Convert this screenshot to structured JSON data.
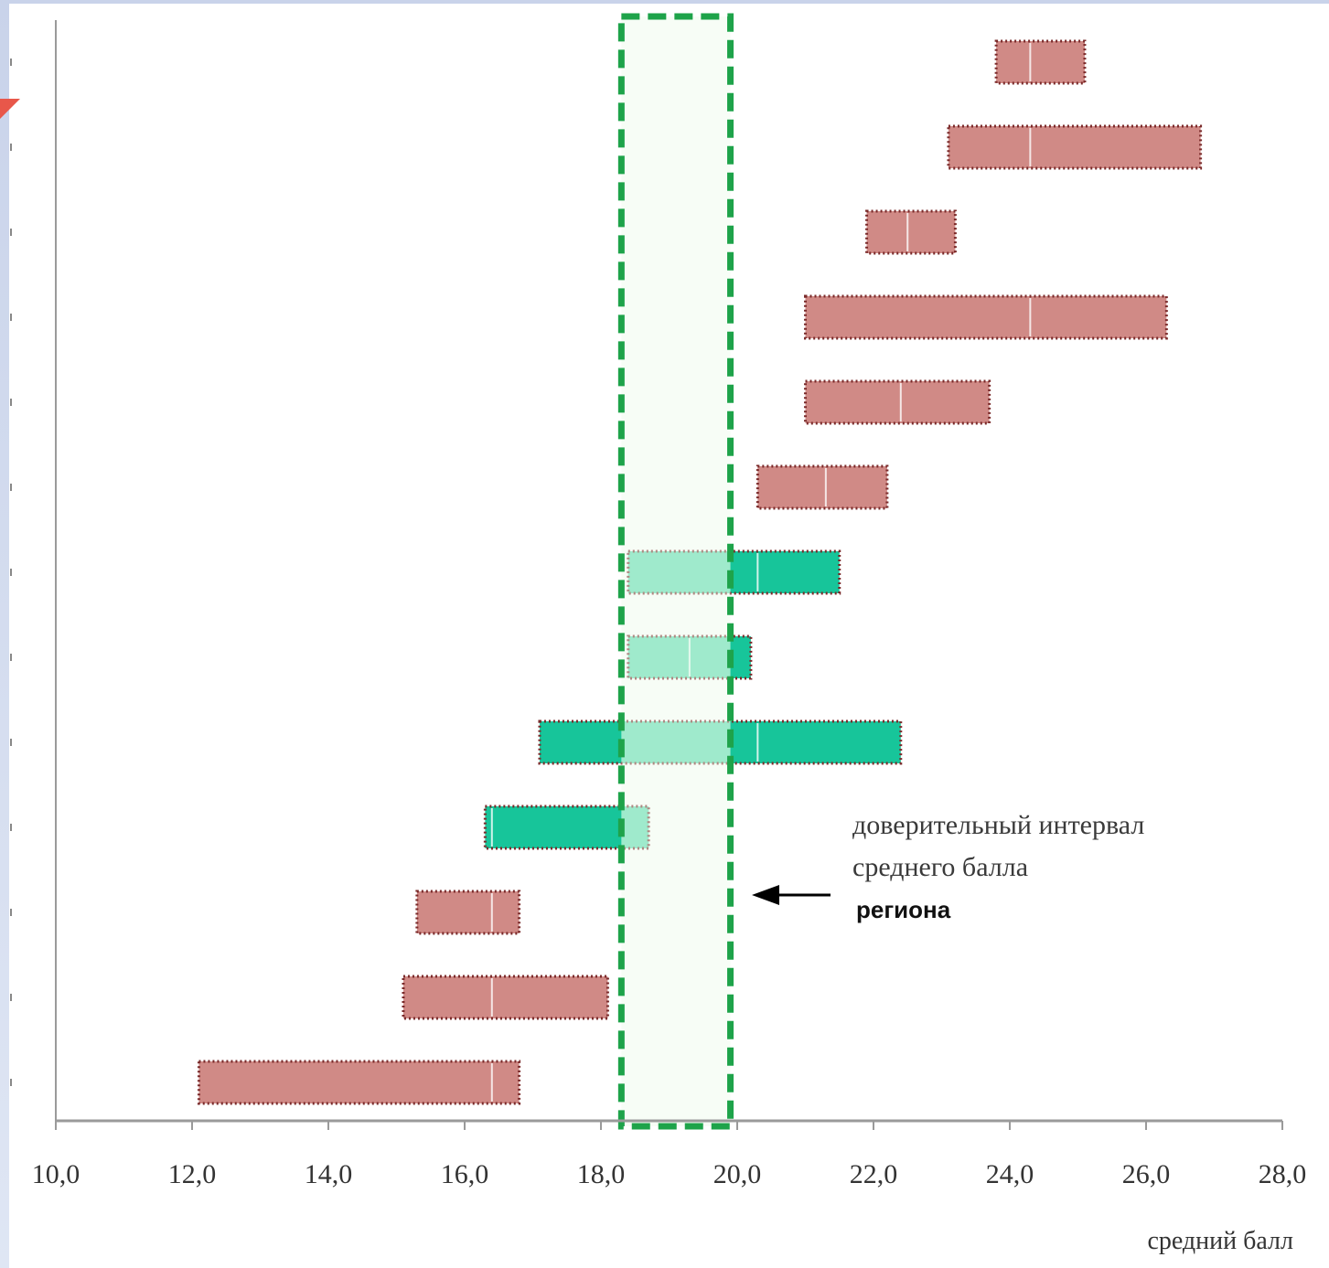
{
  "chart_data": {
    "type": "interval",
    "xlabel": "средний балл",
    "xlim": [
      10,
      28
    ],
    "xticks": [
      "10,0",
      "12,0",
      "14,0",
      "16,0",
      "18,0",
      "20,0",
      "22,0",
      "24,0",
      "26,0",
      "28,0"
    ],
    "confidence_band": {
      "low": 18.3,
      "high": 19.9
    },
    "annotation": [
      "доверительный интервал",
      "среднего балла",
      "региона"
    ],
    "intervals": [
      {
        "low": 23.8,
        "high": 25.1,
        "mean": 24.3,
        "group": "above"
      },
      {
        "low": 23.1,
        "high": 26.8,
        "mean": 24.3,
        "group": "above"
      },
      {
        "low": 21.9,
        "high": 23.2,
        "mean": 22.5,
        "group": "above"
      },
      {
        "low": 21.0,
        "high": 26.3,
        "mean": 24.3,
        "group": "above"
      },
      {
        "low": 21.0,
        "high": 23.7,
        "mean": 22.4,
        "group": "above"
      },
      {
        "low": 20.3,
        "high": 22.2,
        "mean": 21.3,
        "group": "above"
      },
      {
        "low": 18.4,
        "high": 21.5,
        "mean": 20.3,
        "group": "overlap"
      },
      {
        "low": 18.4,
        "high": 20.2,
        "mean": 19.3,
        "group": "overlap"
      },
      {
        "low": 17.1,
        "high": 22.4,
        "mean": 20.3,
        "group": "overlap"
      },
      {
        "low": 16.3,
        "high": 18.7,
        "mean": 16.4,
        "group": "overlap"
      },
      {
        "low": 15.3,
        "high": 16.8,
        "mean": 16.4,
        "group": "below"
      },
      {
        "low": 15.1,
        "high": 18.1,
        "mean": 16.4,
        "group": "below"
      },
      {
        "low": 12.1,
        "high": 16.8,
        "mean": 16.4,
        "group": "below"
      }
    ],
    "colors": {
      "above": "#d08a86",
      "below": "#d08a86",
      "overlap": "#17c59a",
      "overlap_inside": "#5fdcb3",
      "band_fill": "#eefaec",
      "band_stroke": "#1ea34a",
      "bar_border": "#7a2a2a",
      "axis": "#9a9a9a"
    },
    "grid": false
  }
}
